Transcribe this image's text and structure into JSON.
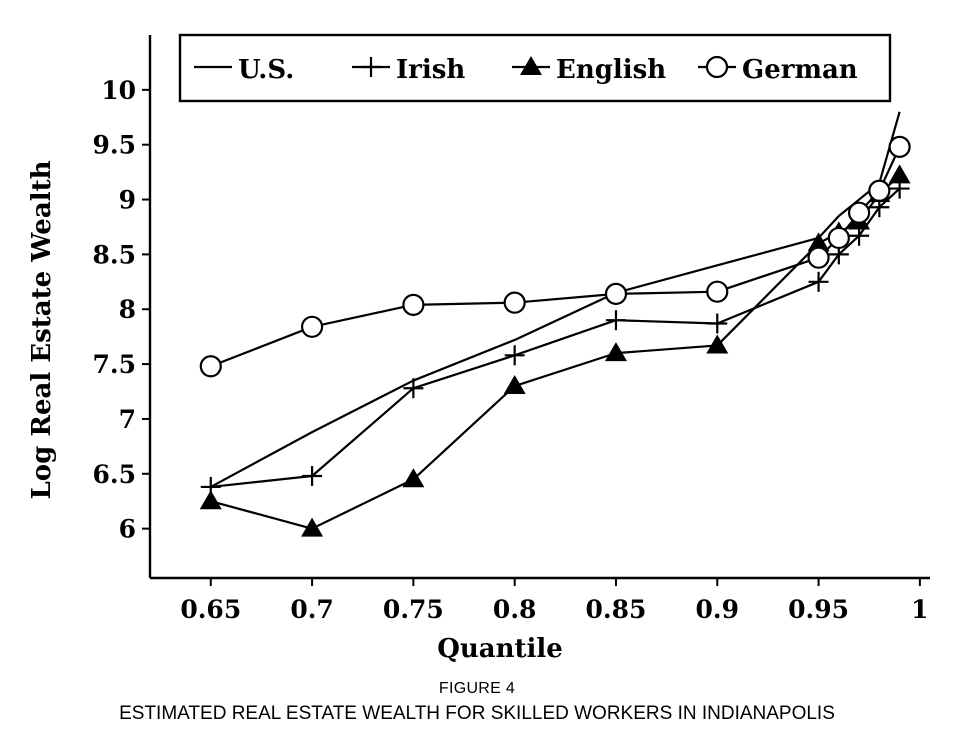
{
  "figure_label": "FIGURE 4",
  "figure_title": "ESTIMATED REAL ESTATE WEALTH FOR SKILLED WORKERS IN INDIANAPOLIS",
  "chart_data": {
    "type": "line",
    "title": "",
    "xlabel": "Quantile",
    "ylabel": "Log Real Estate Wealth",
    "xlim": [
      0.62,
      1.005
    ],
    "ylim": [
      5.55,
      10.5
    ],
    "x_ticks": [
      0.65,
      0.7,
      0.75,
      0.8,
      0.85,
      0.9,
      0.95,
      1
    ],
    "x_tick_labels": [
      "0.65",
      "0.7",
      "0.75",
      "0.8",
      "0.85",
      "0.9",
      "0.95",
      "1"
    ],
    "y_ticks": [
      6,
      6.5,
      7,
      7.5,
      8,
      8.5,
      9,
      9.5,
      10
    ],
    "y_tick_labels": [
      "6",
      "6.5",
      "7",
      "7.5",
      "8",
      "8.5",
      "9",
      "9.5",
      "10"
    ],
    "legend_position": "top",
    "series": [
      {
        "name": "U.S.",
        "marker": "none",
        "x": [
          0.65,
          0.7,
          0.75,
          0.8,
          0.85,
          0.9,
          0.95,
          0.96,
          0.97,
          0.98,
          0.99
        ],
        "y": [
          6.38,
          6.88,
          7.35,
          7.72,
          8.15,
          8.4,
          8.65,
          8.85,
          9.0,
          9.15,
          9.8
        ]
      },
      {
        "name": "Irish",
        "marker": "plus",
        "x": [
          0.65,
          0.7,
          0.75,
          0.8,
          0.85,
          0.9,
          0.95,
          0.96,
          0.97,
          0.98,
          0.99
        ],
        "y": [
          6.38,
          6.48,
          7.28,
          7.58,
          7.9,
          7.87,
          8.25,
          8.5,
          8.67,
          8.93,
          9.1
        ]
      },
      {
        "name": "English",
        "marker": "triangle",
        "x": [
          0.65,
          0.7,
          0.75,
          0.8,
          0.85,
          0.9,
          0.95,
          0.96,
          0.97,
          0.98,
          0.99
        ],
        "y": [
          6.25,
          6.0,
          6.45,
          7.3,
          7.6,
          7.67,
          8.6,
          8.7,
          8.8,
          9.05,
          9.22
        ]
      },
      {
        "name": "German",
        "marker": "circle",
        "x": [
          0.65,
          0.7,
          0.75,
          0.8,
          0.85,
          0.9,
          0.95,
          0.96,
          0.97,
          0.98,
          0.99
        ],
        "y": [
          7.48,
          7.84,
          8.04,
          8.06,
          8.14,
          8.16,
          8.47,
          8.65,
          8.88,
          9.08,
          9.48
        ]
      }
    ]
  }
}
